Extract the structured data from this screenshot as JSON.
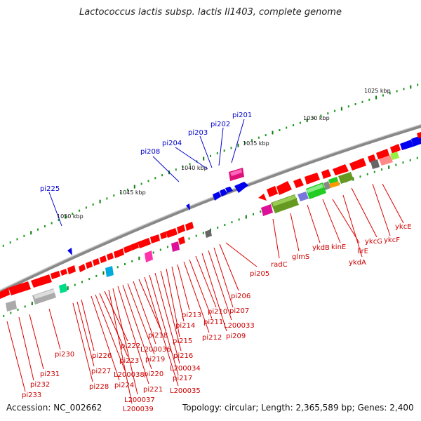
{
  "title": "Lactococcus lactis subsp. lactis Il1403, complete genome",
  "accession": "Accession: NC_002662",
  "summary": "Topology: circular; Length: 2,365,589 bp; Genes: 2,400",
  "colors": {
    "gene_fwd": "#ff0000",
    "gene_rev_shade": "#cc0000",
    "label_red": "#cc0000",
    "label_blue": "#0000cc",
    "backbone": "#888888"
  },
  "kbp_ticks": [
    "1025 kbp",
    "1030 kbp",
    "1035 kbp",
    "1040 kbp",
    "1045 kbp",
    "1050 kbp"
  ],
  "blue_labels": [
    "pi201",
    "pi202",
    "pi203",
    "pi204",
    "pi208",
    "pi225"
  ],
  "red_labels": [
    "ykcE",
    "ykcF",
    "ykcG",
    "ykdA",
    "llrE",
    "kinE",
    "ykdB",
    "glmS",
    "radC",
    "pi205",
    "pi206",
    "pi207",
    "L200033",
    "pi209",
    "pi210",
    "pi211",
    "pi212",
    "pi213",
    "pi214",
    "pi215",
    "pi216",
    "L200034",
    "pi217",
    "L200035",
    "pi218",
    "L200036",
    "pi219",
    "pi220",
    "pi221",
    "L200037",
    "L200039",
    "pi222",
    "pi223",
    "L200038",
    "pi224",
    "pi226",
    "pi227",
    "pi228",
    "pi230",
    "pi231",
    "pi232",
    "pi233"
  ]
}
